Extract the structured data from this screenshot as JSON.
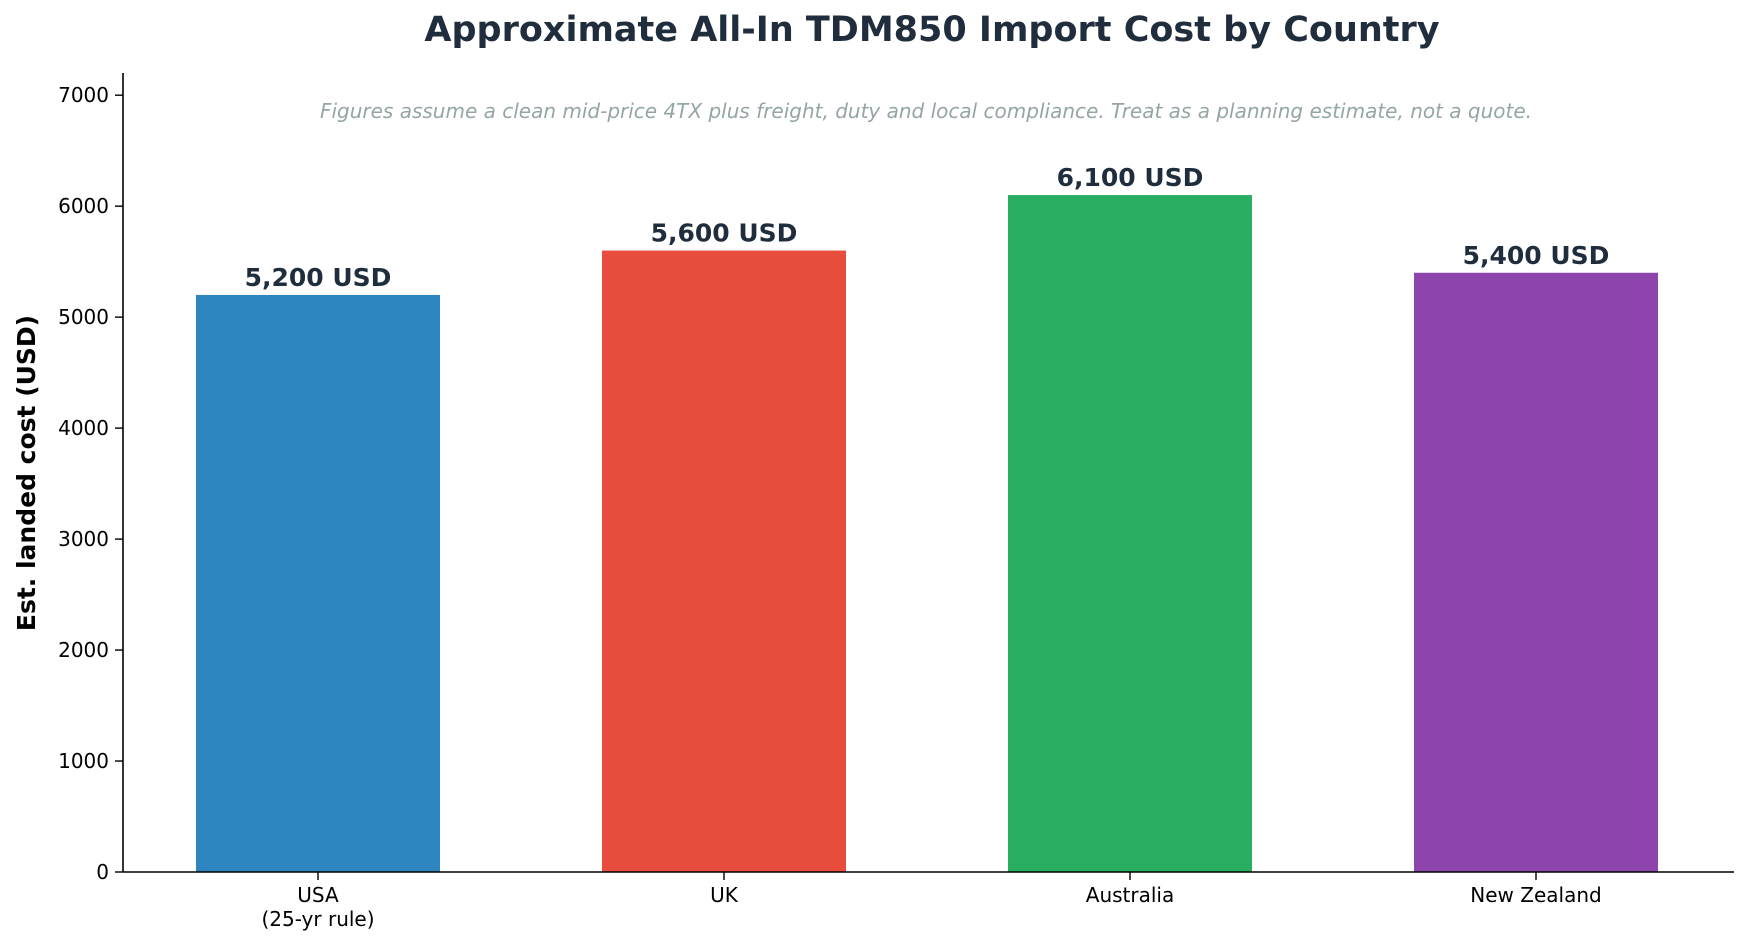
{
  "chart_data": {
    "type": "bar",
    "title": "Approximate All-In TDM850 Import Cost by Country",
    "subtitle": "Figures assume a clean mid-price 4TX plus freight, duty and local compliance. Treat as a planning estimate, not a quote.",
    "xlabel": "",
    "ylabel": "Est. landed cost (USD)",
    "categories": [
      "USA\n(25-yr rule)",
      "UK",
      "Australia",
      "New Zealand"
    ],
    "values": [
      5200,
      5600,
      6100,
      5400
    ],
    "data_labels": [
      "5,200 USD",
      "5,600 USD",
      "6,100 USD",
      "5,400 USD"
    ],
    "colors": [
      "#2e86c1",
      "#e74c3c",
      "#27ae60",
      "#8e44ad"
    ],
    "ylim": [
      0,
      7200
    ],
    "yticks": [
      0,
      1000,
      2000,
      3000,
      4000,
      5000,
      6000,
      7000
    ],
    "grid": false,
    "legend": "none"
  }
}
